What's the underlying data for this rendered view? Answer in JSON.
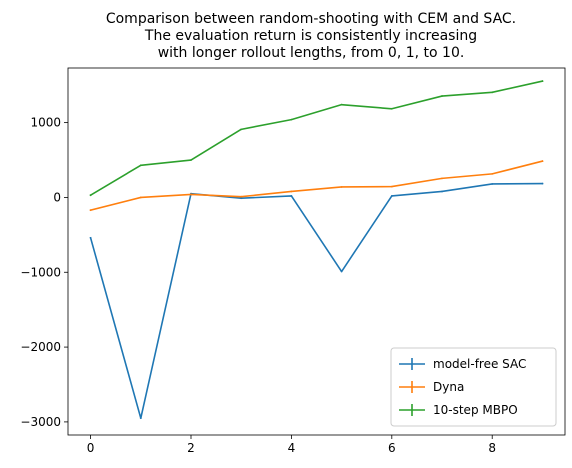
{
  "chart_data": {
    "type": "line",
    "title_lines": [
      "Comparison between random-shooting with CEM and SAC.",
      "The evaluation return is consistently increasing",
      "with longer rollout lengths, from 0, 1, to 10."
    ],
    "xlabel": "",
    "ylabel": "",
    "x": [
      0,
      1,
      2,
      3,
      4,
      5,
      6,
      7,
      8,
      9
    ],
    "xlim": [
      -0.45,
      9.45
    ],
    "ylim": [
      -3175,
      1730
    ],
    "xticks": [
      0,
      2,
      4,
      6,
      8
    ],
    "yticks": [
      -3000,
      -2000,
      -1000,
      0,
      1000
    ],
    "grid": false,
    "legend_position": "lower right",
    "series": [
      {
        "name": "model-free SAC",
        "color": "#1f77b4",
        "values": [
          -540,
          -2950,
          50,
          -10,
          20,
          -990,
          20,
          80,
          180,
          185
        ]
      },
      {
        "name": "Dyna",
        "color": "#ff7f0e",
        "values": [
          -170,
          0,
          40,
          10,
          80,
          140,
          145,
          255,
          315,
          485
        ]
      },
      {
        "name": "10-step MBPO",
        "color": "#2ca02c",
        "values": [
          30,
          430,
          500,
          910,
          1040,
          1240,
          1185,
          1355,
          1405,
          1555
        ]
      }
    ]
  }
}
